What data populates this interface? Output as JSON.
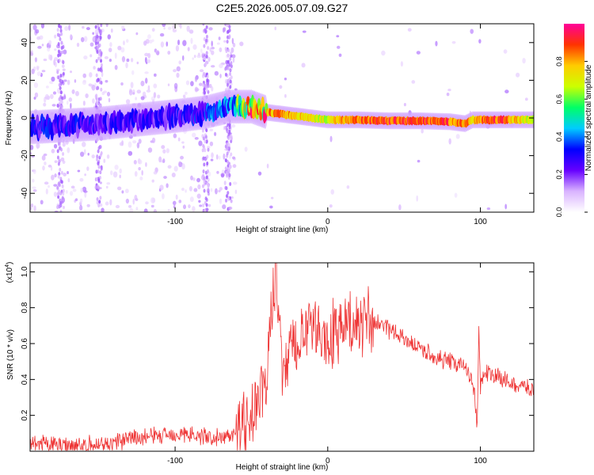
{
  "title": "C2E5.2026.005.07.09.G27",
  "chart_data": [
    {
      "type": "heatmap",
      "title": "C2E5.2026.005.07.09.G27",
      "xlabel": "Height of straight line (km)",
      "ylabel": "Frequency (Hz)",
      "xlim": [
        -195,
        135
      ],
      "ylim": [
        -50,
        50
      ],
      "xticks": [
        -100,
        0,
        100
      ],
      "xtick_labels": [
        "-100",
        "0",
        "100"
      ],
      "yticks": [
        -40,
        -20,
        0,
        20,
        40
      ],
      "ytick_labels": [
        "-40",
        "-20",
        "0",
        "20",
        "40"
      ],
      "ridge": {
        "x": [
          -195,
          -150,
          -100,
          -80,
          -65,
          -50,
          -40,
          -30,
          -20,
          -10,
          0,
          10,
          20,
          40,
          60,
          80,
          90,
          95,
          100,
          115,
          135
        ],
        "y": [
          -5,
          -3,
          1,
          3,
          6,
          6,
          3,
          2,
          1,
          0,
          -1,
          -1,
          -1,
          -1.5,
          -1.5,
          -2,
          -3,
          -1,
          -1,
          -1,
          -1
        ],
        "amplitude": [
          0.35,
          0.3,
          0.3,
          0.35,
          0.45,
          0.85,
          0.9,
          0.9,
          0.85,
          0.8,
          0.75,
          0.9,
          0.95,
          0.98,
          0.98,
          0.97,
          0.9,
          0.85,
          0.95,
          0.98,
          0.7
        ]
      },
      "colorbar": {
        "label": "Normalized spectral amplitude",
        "range": [
          0.0,
          1.0
        ],
        "ticks": [
          0.0,
          0.2,
          0.4,
          0.6,
          0.8
        ],
        "tick_labels": [
          "0.0",
          "0.2",
          "0.4",
          "0.6",
          "0.8"
        ],
        "colors": [
          "#ffffff",
          "#d9b3ff",
          "#6600ff",
          "#0000ff",
          "#00ccff",
          "#00ff66",
          "#ccff00",
          "#ffcc00",
          "#ff3300",
          "#ff0099"
        ]
      }
    },
    {
      "type": "line",
      "xlabel": "Height of straight line (km)",
      "ylabel": "SNR (10 * v/v)",
      "yscale_label": "(x10",
      "yscale_exp": "4",
      "yscale_close": ")",
      "xlim": [
        -195,
        135
      ],
      "ylim": [
        0.0,
        1.05
      ],
      "xticks": [
        -100,
        0,
        100
      ],
      "xtick_labels": [
        "-100",
        "0",
        "100"
      ],
      "yticks": [
        0.2,
        0.4,
        0.6,
        0.8,
        1.0
      ],
      "ytick_labels": [
        "0.2",
        "0.4",
        "0.6",
        "0.8",
        "1.0"
      ],
      "series": [
        {
          "name": "SNR",
          "color": "#ee3333",
          "x": [
            -195,
            -180,
            -160,
            -140,
            -120,
            -100,
            -80,
            -70,
            -60,
            -50,
            -45,
            -40,
            -36,
            -34,
            -30,
            -25,
            -20,
            -15,
            -10,
            -5,
            0,
            5,
            10,
            15,
            20,
            25,
            30,
            40,
            50,
            60,
            70,
            80,
            90,
            95,
            98,
            99,
            100,
            102,
            110,
            120,
            135
          ],
          "y": [
            0.03,
            0.04,
            0.03,
            0.05,
            0.08,
            0.1,
            0.08,
            0.07,
            0.12,
            0.2,
            0.28,
            0.38,
            0.9,
            1.0,
            0.45,
            0.55,
            0.62,
            0.65,
            0.68,
            0.66,
            0.6,
            0.68,
            0.7,
            0.68,
            0.74,
            0.72,
            0.72,
            0.68,
            0.63,
            0.58,
            0.52,
            0.5,
            0.47,
            0.4,
            0.15,
            0.7,
            0.35,
            0.44,
            0.42,
            0.38,
            0.34
          ]
        }
      ]
    }
  ]
}
